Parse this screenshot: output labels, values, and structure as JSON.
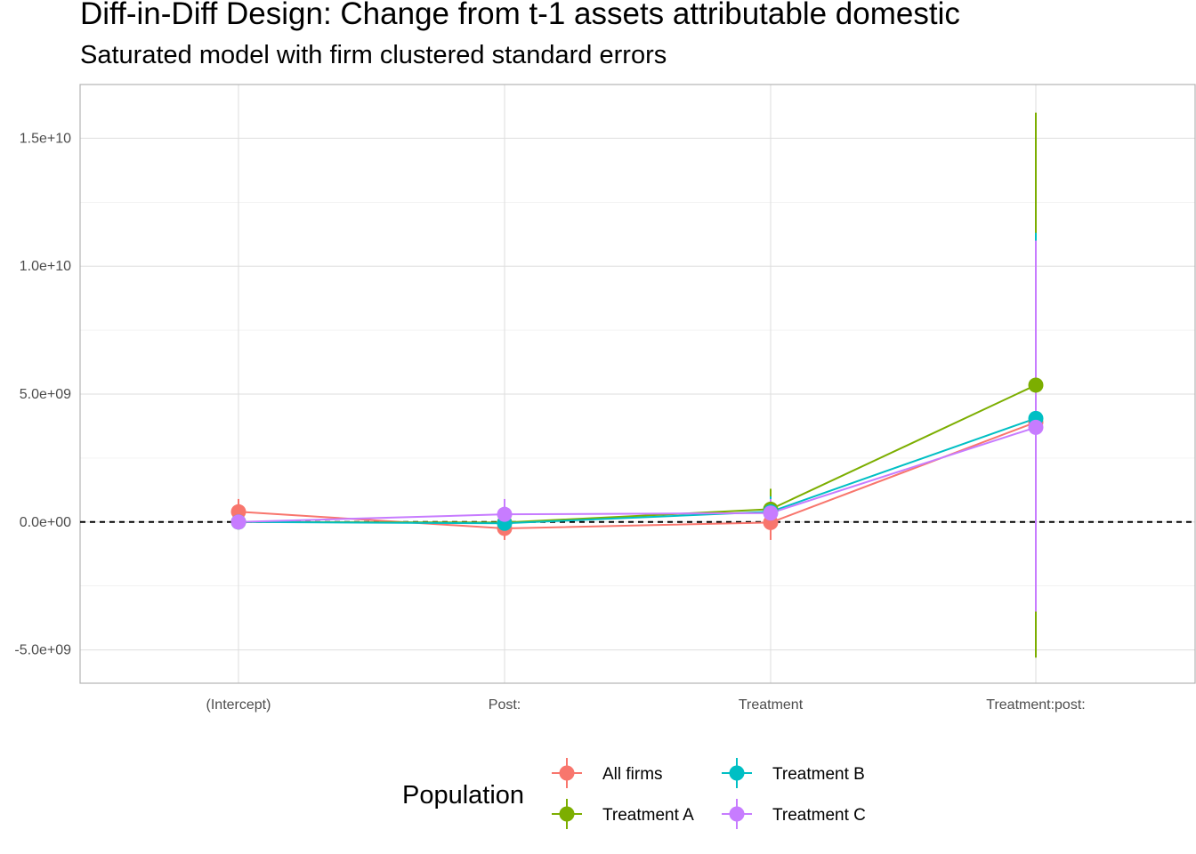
{
  "title": "Diff-in-Diff Design: Change from t-1 assets attributable domestic",
  "subtitle": "Saturated model with firm clustered standard errors",
  "chart_data": {
    "type": "line",
    "title": "Diff-in-Diff Design: Change from t-1 assets attributable domestic",
    "subtitle": "Saturated model with firm clustered standard errors",
    "xlabel": "",
    "ylabel": "",
    "categories": [
      "(Intercept)",
      "Post:",
      "Treatment",
      "Treatment:post:"
    ],
    "y_ticks": [
      -5000000000.0,
      0,
      5000000000.0,
      10000000000.0,
      15000000000.0
    ],
    "y_tick_labels": [
      "-5.0e+09",
      "0.0e+00",
      "5.0e+09",
      "1.0e+10",
      "1.5e+10"
    ],
    "ylim": [
      -6300000000.0,
      17100000000.0
    ],
    "grid": true,
    "reference_line": {
      "y": 0,
      "style": "dashed"
    },
    "legend": {
      "title": "Population",
      "position": "bottom"
    },
    "series": [
      {
        "name": "All firms",
        "color": "#F8766D",
        "values": [
          400000000.0,
          -250000000.0,
          -20000000.0,
          3900000000.0
        ],
        "lower": [
          -100000000.0,
          -700000000.0,
          -700000000.0,
          -3500000000.0
        ],
        "upper": [
          900000000.0,
          200000000.0,
          650000000.0,
          11200000000.0
        ]
      },
      {
        "name": "Treatment A",
        "color": "#7CAE00",
        "values": [
          0.0,
          -20000000.0,
          500000000.0,
          5350000000.0
        ],
        "lower": [
          -100000000.0,
          -300000000.0,
          -300000000.0,
          -5300000000.0
        ],
        "upper": [
          100000000.0,
          250000000.0,
          1300000000.0,
          16000000000.0
        ]
      },
      {
        "name": "Treatment B",
        "color": "#00BFC4",
        "values": [
          0.0,
          -50000000.0,
          400000000.0,
          4050000000.0
        ],
        "lower": [
          -100000000.0,
          -400000000.0,
          -200000000.0,
          -3500000000.0
        ],
        "upper": [
          100000000.0,
          300000000.0,
          1000000000.0,
          11300000000.0
        ]
      },
      {
        "name": "Treatment C",
        "color": "#C77CFF",
        "values": [
          0.0,
          300000000.0,
          350000000.0,
          3700000000.0
        ],
        "lower": [
          -100000000.0,
          -300000000.0,
          -200000000.0,
          -3500000000.0
        ],
        "upper": [
          100000000.0,
          900000000.0,
          900000000.0,
          11000000000.0
        ]
      }
    ]
  }
}
